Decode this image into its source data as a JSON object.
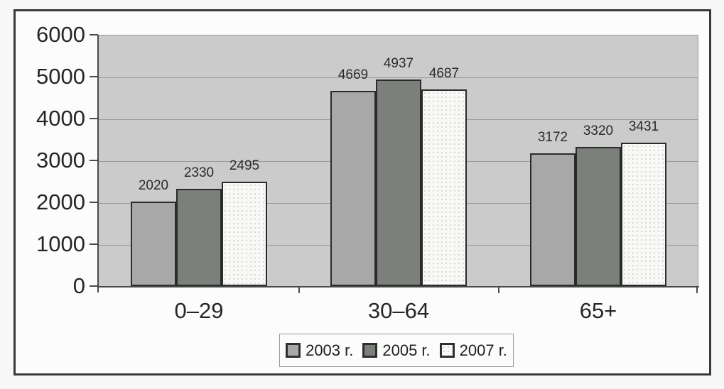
{
  "chart_data": {
    "type": "bar",
    "title": "",
    "categories": [
      "0–29",
      "30–64",
      "65+"
    ],
    "series": [
      {
        "name": "2003 r.",
        "color": "#a8a8a8",
        "texture": "plain",
        "values": [
          2020,
          4669,
          3172
        ]
      },
      {
        "name": "2005 r.",
        "color": "#7b807b",
        "texture": "plain",
        "values": [
          2330,
          4937,
          3320
        ]
      },
      {
        "name": "2007 r.",
        "color": "#f8f8f6",
        "texture": "dotted",
        "values": [
          2495,
          4687,
          3431
        ]
      }
    ],
    "ylim": [
      0,
      6000
    ],
    "yticks": [
      0,
      1000,
      2000,
      3000,
      4000,
      5000,
      6000
    ],
    "grid": true,
    "data_labels": true,
    "legend_position": "bottom"
  },
  "colors": {
    "plot_background": "#cbcbcb",
    "gridline": "#9a9a9a",
    "axis": "#4a4a4a",
    "frame_border": "#3a3a3a",
    "bar_border": "#2b2b2b",
    "text": "#262626"
  }
}
